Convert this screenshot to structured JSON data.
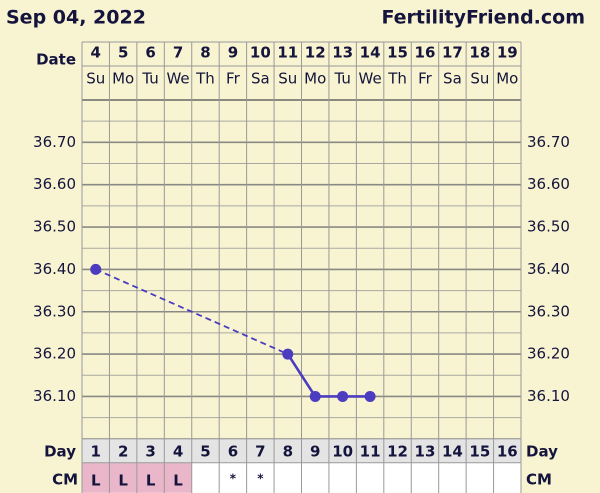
{
  "chart_data": {
    "type": "line",
    "title": "Sep 04, 2022",
    "site": "FertilityFriend.com",
    "date_label": "Date",
    "day_label": "Day",
    "cm_label": "CM",
    "x": [
      "4",
      "5",
      "6",
      "7",
      "8",
      "9",
      "10",
      "11",
      "12",
      "13",
      "14",
      "15",
      "16",
      "17",
      "18",
      "19"
    ],
    "weekdays": [
      "Su",
      "Mo",
      "Tu",
      "We",
      "Th",
      "Fr",
      "Sa",
      "Su",
      "Mo",
      "Tu",
      "We",
      "Th",
      "Fr",
      "Sa",
      "Su",
      "Mo"
    ],
    "cycle_days": [
      "1",
      "2",
      "3",
      "4",
      "5",
      "6",
      "7",
      "8",
      "9",
      "10",
      "11",
      "12",
      "13",
      "14",
      "15",
      "16"
    ],
    "cm": [
      "L",
      "L",
      "L",
      "L",
      null,
      "*",
      "*",
      null,
      null,
      null,
      null,
      null,
      null,
      null,
      null,
      null
    ],
    "series": [
      {
        "color": "#4b3cc0",
        "values": [
          36.4,
          null,
          null,
          null,
          null,
          null,
          null,
          36.2,
          36.1,
          36.1,
          36.1,
          null,
          null,
          null,
          null,
          null
        ]
      }
    ],
    "ylim": [
      36.0,
      36.8
    ],
    "yticks": [
      {
        "value": 36.1,
        "label": "36.10"
      },
      {
        "value": 36.2,
        "label": "36.20"
      },
      {
        "value": 36.3,
        "label": "36.30"
      },
      {
        "value": 36.4,
        "label": "36.40"
      },
      {
        "value": 36.5,
        "label": "36.50"
      },
      {
        "value": 36.6,
        "label": "36.60"
      },
      {
        "value": 36.7,
        "label": "36.70"
      }
    ],
    "grid": true
  }
}
